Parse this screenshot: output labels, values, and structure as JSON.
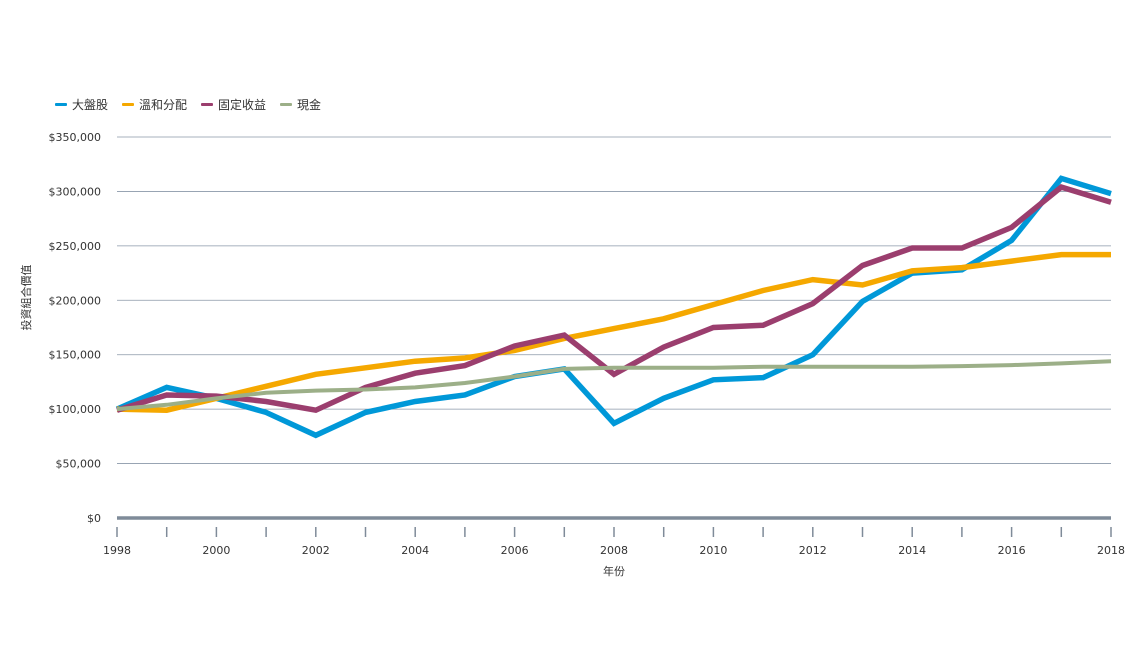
{
  "chart_data": {
    "type": "line",
    "title": "",
    "xlabel": "年份",
    "ylabel": "投資組合價值",
    "x": [
      1998,
      1999,
      2000,
      2001,
      2002,
      2003,
      2004,
      2005,
      2006,
      2007,
      2008,
      2009,
      2010,
      2011,
      2012,
      2013,
      2014,
      2015,
      2016,
      2017,
      2018
    ],
    "xlim": [
      1998,
      2018
    ],
    "x_ticks": [
      1998,
      2000,
      2002,
      2004,
      2006,
      2008,
      2010,
      2012,
      2014,
      2016,
      2018
    ],
    "x_tick_labels": [
      "1998",
      "2000",
      "2002",
      "2004",
      "2006",
      "2008",
      "2010",
      "2012",
      "2014",
      "2016",
      "2018"
    ],
    "ylim": [
      0,
      350000
    ],
    "y_ticks": [
      0,
      50000,
      100000,
      150000,
      200000,
      250000,
      300000,
      350000
    ],
    "y_tick_labels": [
      "$0",
      "$50,000",
      "$100,000",
      "$150,000",
      "$200,000",
      "$250,000",
      "$300,000",
      "$350,000"
    ],
    "grid": true,
    "legend_position": "top-left",
    "series": [
      {
        "name": "大盤股",
        "color": "#0098d8",
        "values": [
          100000,
          120000,
          110000,
          97000,
          76000,
          97000,
          107000,
          113000,
          130000,
          137000,
          87000,
          110000,
          127000,
          129000,
          150000,
          199000,
          225000,
          228000,
          255000,
          312000,
          298000
        ]
      },
      {
        "name": "溫和分配",
        "color": "#f5a800",
        "values": [
          100000,
          99000,
          110000,
          121000,
          132000,
          138000,
          144000,
          147000,
          154000,
          165000,
          174000,
          183000,
          196000,
          209000,
          219000,
          214000,
          227000,
          230000,
          236000,
          242000,
          242000
        ]
      },
      {
        "name": "固定收益",
        "color": "#9b3e6e",
        "values": [
          99000,
          113000,
          112000,
          107000,
          99000,
          120000,
          133000,
          140000,
          158000,
          168000,
          132000,
          157000,
          175000,
          177000,
          197000,
          232000,
          248000,
          248000,
          267000,
          304000,
          290000
        ]
      },
      {
        "name": "現金",
        "color": "#9caf88",
        "values": [
          100000,
          104000,
          110000,
          115000,
          117000,
          118000,
          120000,
          124000,
          130000,
          137000,
          138000,
          138000,
          138000,
          139000,
          139000,
          139000,
          139000,
          139500,
          140500,
          142000,
          144000
        ]
      }
    ]
  }
}
